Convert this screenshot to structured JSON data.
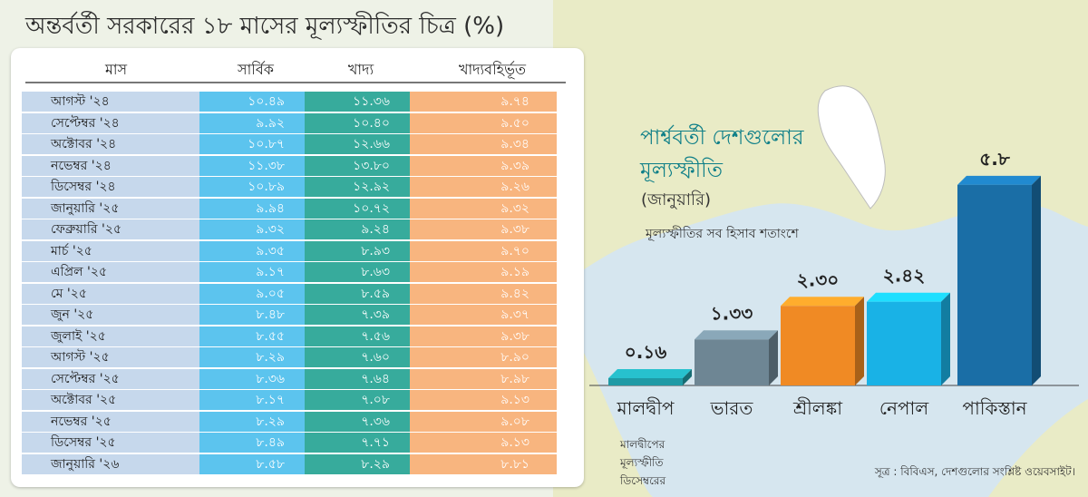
{
  "page": {
    "title": "অন্তর্বর্তী সরকারের ১৮ মাসের মূল্যস্ফীতির চিত্র (%)"
  },
  "table": {
    "headers": [
      "মাস",
      "সার্বিক",
      "খাদ্য",
      "খাদ্যবহির্ভূত"
    ],
    "rows": [
      {
        "month": "আগস্ট '২৪",
        "overall": "১০.৪৯",
        "food": "১১.৩৬",
        "nonfood": "৯.৭৪"
      },
      {
        "month": "সেপ্টেম্বর '২৪",
        "overall": "৯.৯২",
        "food": "১০.৪০",
        "nonfood": "৯.৫০"
      },
      {
        "month": "অক্টোবর '২৪",
        "overall": "১০.৮৭",
        "food": "১২.৬৬",
        "nonfood": "৯.৩৪"
      },
      {
        "month": "নভেম্বর '২৪",
        "overall": "১১.৩৮",
        "food": "১৩.৮০",
        "nonfood": "৯.৩৯"
      },
      {
        "month": "ডিসেম্বর '২৪",
        "overall": "১০.৮৯",
        "food": "১২.৯২",
        "nonfood": "৯.২৬"
      },
      {
        "month": "জানুয়ারি '২৫",
        "overall": "৯.৯৪",
        "food": "১০.৭২",
        "nonfood": "৯.৩২"
      },
      {
        "month": "ফেব্রুয়ারি '২৫",
        "overall": "৯.৩২",
        "food": "৯.২৪",
        "nonfood": "৯.৩৮"
      },
      {
        "month": "মার্চ '২৫",
        "overall": "৯.৩৫",
        "food": "৮.৯৩",
        "nonfood": "৯.৭০"
      },
      {
        "month": "এপ্রিল '২৫",
        "overall": "৯.১৭",
        "food": "৮.৬৩",
        "nonfood": "৯.১৯"
      },
      {
        "month": "মে '২৫",
        "overall": "৯.০৫",
        "food": "৮.৫৯",
        "nonfood": "৯.৪২"
      },
      {
        "month": "জুন '২৫",
        "overall": "৮.৪৮",
        "food": "৭.৩৯",
        "nonfood": "৯.৩৭"
      },
      {
        "month": "জুলাই '২৫",
        "overall": "৮.৫৫",
        "food": "৭.৫৬",
        "nonfood": "৯.৩৮"
      },
      {
        "month": "আগস্ট '২৫",
        "overall": "৮.২৯",
        "food": "৭.৬০",
        "nonfood": "৮.৯০"
      },
      {
        "month": "সেপ্টেম্বর '২৫",
        "overall": "৮.৩৬",
        "food": "৭.৬৪",
        "nonfood": "৮.৯৮"
      },
      {
        "month": "অক্টোবর '২৫",
        "overall": "৮.১৭",
        "food": "৭.০৮",
        "nonfood": "৯.১৩"
      },
      {
        "month": "নভেম্বর '২৫",
        "overall": "৮.২৯",
        "food": "৭.৩৬",
        "nonfood": "৯.০৮"
      },
      {
        "month": "ডিসেম্বর '২৫",
        "overall": "৮.৪৯",
        "food": "৭.৭১",
        "nonfood": "৯.১৩"
      },
      {
        "month": "জানুয়ারি '২৬",
        "overall": "৮.৫৮",
        "food": "৮.২৯",
        "nonfood": "৮.৮১"
      }
    ]
  },
  "chart_data": {
    "type": "bar",
    "title_line1": "পার্শ্ববর্তী দেশগুলোর",
    "title_line2": "মূল্যস্ফীতি",
    "subtitle": "(জানুয়ারি)",
    "note": "মূল্যস্ফীতির সব হিসাব শতাংশে",
    "categories": [
      "মালদ্বীপ",
      "ভারত",
      "শ্রীলঙ্কা",
      "নেপাল",
      "পাকিস্তান"
    ],
    "values": [
      0.16,
      1.33,
      2.3,
      2.42,
      5.8
    ],
    "value_labels": [
      "০.১৬",
      "১.৩৩",
      "২.৩০",
      "২.৪২",
      "৫.৮"
    ],
    "colors": [
      "#1f9aa5",
      "#6e8694",
      "#f08a24",
      "#19b2e6",
      "#1a6ea6"
    ],
    "ylim": [
      0,
      6
    ],
    "footnote_lines": [
      "মালদ্বীপের",
      "মূল্যস্ফীতি",
      "ডিসেম্বরের"
    ],
    "source": "সূত্র : বিবিএস, দেশগুলোর সংশ্লিষ্ট ওয়েবসাইট।"
  }
}
